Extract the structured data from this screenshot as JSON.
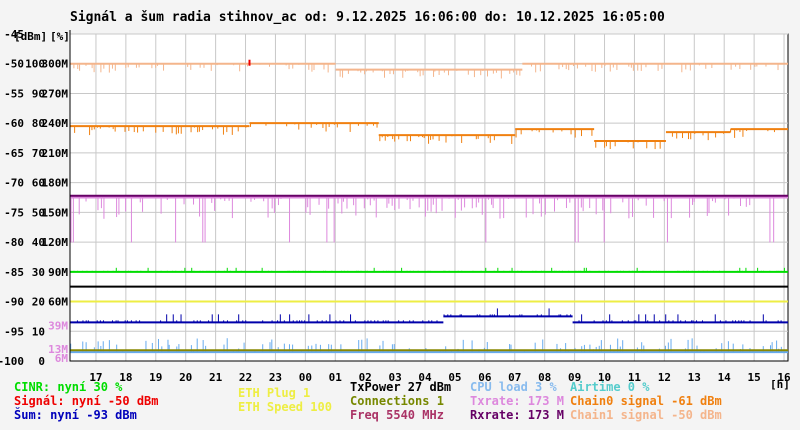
{
  "title": "Signál a šum radia stihnov_ac od: 9.12.2025 16:06:00 do: 10.12.2025 16:05:00",
  "chart_data": {
    "type": "line",
    "units": {
      "dbm": "[dBm]",
      "pct": "[%]",
      "hours": "[h]"
    },
    "x_ticks": [
      "17",
      "18",
      "19",
      "20",
      "21",
      "22",
      "23",
      "00",
      "01",
      "02",
      "03",
      "04",
      "05",
      "06",
      "07",
      "08",
      "09",
      "10",
      "11",
      "12",
      "13",
      "14",
      "15",
      "16"
    ],
    "y_dbm_ticks": [
      "-45",
      "-50",
      "-55",
      "-60",
      "-65",
      "-70",
      "-75",
      "-80",
      "-85",
      "-90",
      "-95",
      "-100"
    ],
    "y_pct_ticks": [
      "100",
      "90",
      "80",
      "70",
      "60",
      "50",
      "40",
      "30",
      "20",
      "10",
      "0"
    ],
    "y_speed_ticks": [
      "300M",
      "270M",
      "240M",
      "210M",
      "180M",
      "150M",
      "120M",
      "90M",
      "60M",
      "39M",
      "13M",
      "6M"
    ],
    "ylim_dbm": [
      -100,
      -45
    ],
    "grid": true,
    "series": [
      {
        "name": "Chain1 signal",
        "color": "#f4b58c",
        "segments": [
          {
            "x0": 0,
            "x1": 0.37,
            "y": -50
          },
          {
            "x0": 0.37,
            "x1": 0.63,
            "y": -51
          },
          {
            "x0": 0.63,
            "x1": 1,
            "y": -50
          }
        ]
      },
      {
        "name": "Chain0 signal",
        "color": "#f08010",
        "segments": [
          {
            "x0": 0,
            "x1": 0.25,
            "y": -60.5
          },
          {
            "x0": 0.25,
            "x1": 0.43,
            "y": -60
          },
          {
            "x0": 0.43,
            "x1": 0.62,
            "y": -62
          },
          {
            "x0": 0.62,
            "x1": 0.73,
            "y": -61
          },
          {
            "x0": 0.73,
            "x1": 0.83,
            "y": -63
          },
          {
            "x0": 0.83,
            "x1": 0.92,
            "y": -61.5
          },
          {
            "x0": 0.92,
            "x1": 1,
            "y": -61
          }
        ]
      },
      {
        "name": "Txrate",
        "color": "#dd88dd",
        "segments": [
          {
            "x0": 0,
            "x1": 1,
            "y": -72.5
          }
        ]
      },
      {
        "name": "Rxrate",
        "color": "#660066",
        "segments": [
          {
            "x0": 0,
            "x1": 1,
            "y": -72.2
          }
        ]
      },
      {
        "name": "CINR",
        "color": "#00dd00",
        "segments": [
          {
            "x0": 0,
            "x1": 1,
            "y": -85
          }
        ]
      },
      {
        "name": "ETH Speed",
        "color": "#eeee44",
        "segments": [
          {
            "x0": 0,
            "x1": 1,
            "y": -90
          }
        ]
      },
      {
        "name": "TxPower",
        "color": "#000000",
        "segments": [
          {
            "x0": 0,
            "x1": 1,
            "y": -87.5
          }
        ]
      },
      {
        "name": "Šum",
        "color": "#0000aa",
        "segments": [
          {
            "x0": 0,
            "x1": 0.52,
            "y": -93.5
          },
          {
            "x0": 0.52,
            "x1": 0.7,
            "y": -92.5
          },
          {
            "x0": 0.7,
            "x1": 1,
            "y": -93.5
          }
        ]
      },
      {
        "name": "CPU load",
        "color": "#66aaee",
        "segments": [
          {
            "x0": 0,
            "x1": 1,
            "y": -98.5
          }
        ]
      },
      {
        "name": "Connections",
        "color": "#888800",
        "segments": [
          {
            "x0": 0,
            "x1": 1,
            "y": -98.2
          }
        ]
      }
    ],
    "events": [
      {
        "x": 0.25,
        "y": -50,
        "color": "#ee0000"
      }
    ]
  },
  "legend": {
    "col1": [
      {
        "text": "CINR: nyní 30 %",
        "color": "#00dd00"
      },
      {
        "text": "Signál: nyní -50 dBm",
        "color": "#ee0000"
      },
      {
        "text": "Šum: nyní -93 dBm",
        "color": "#0000bb"
      }
    ],
    "col2": [
      {
        "text": "ETH Plug 1",
        "color": "#eeee44"
      },
      {
        "text": "ETH Speed 100",
        "color": "#eeee44"
      }
    ],
    "col3": [
      {
        "text": "TxPower 27 dBm",
        "color": "#000000"
      },
      {
        "text": "Connections 1",
        "color": "#778800"
      },
      {
        "text": "Freq 5540 MHz",
        "color": "#aa3366"
      }
    ],
    "col4": [
      {
        "text": "CPU load 3 %",
        "color": "#88bbee"
      },
      {
        "text": "Txrate: 173 M",
        "color": "#dd88dd"
      },
      {
        "text": "Rxrate: 173 M",
        "color": "#660066"
      }
    ],
    "col5": [
      {
        "text": "Airtime 0 %",
        "color": "#55cccc"
      },
      {
        "text": "Chain0 signal -61 dBm",
        "color": "#f08010"
      },
      {
        "text": "Chain1 signal -50 dBm",
        "color": "#f4b58c"
      }
    ]
  }
}
